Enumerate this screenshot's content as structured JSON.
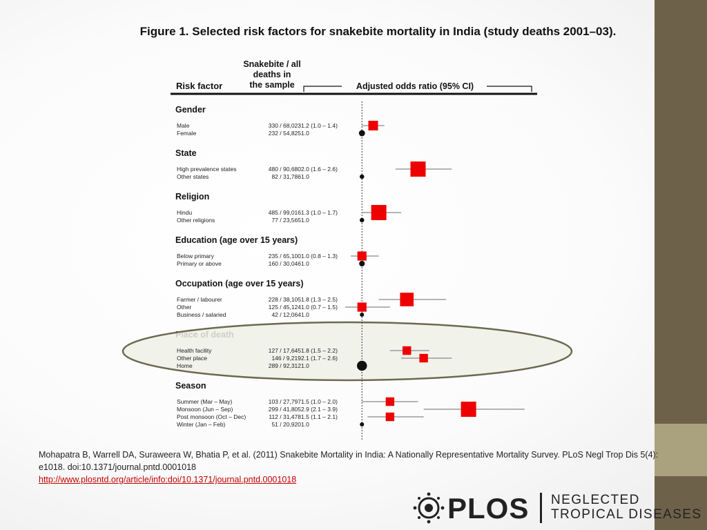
{
  "figure_title": "Figure 1. Selected risk factors for snakebite mortality in India (study deaths 2001–03).",
  "colors": {
    "marker": "#ee0000",
    "sidebar": "#6e6149",
    "sidebar_accent": "#aaa27e",
    "link": "#c00000"
  },
  "chart_data": {
    "type": "forest",
    "column_headers": {
      "risk_factor": "Risk factor",
      "deaths": [
        "Snakebite / all",
        "deaths in",
        "the sample"
      ],
      "odds_ratio": "Adjusted odds ratio  (95% CI)"
    },
    "xlabel": "Odds ratio",
    "xlim": [
      0,
      4
    ],
    "x_ticks": [
      "0",
      "1",
      "2",
      "3",
      "4"
    ],
    "reference_line": 1,
    "groups": [
      {
        "name": "Gender",
        "rows": [
          {
            "label": "Male",
            "deaths": "330 / 68,023",
            "or_text": "1.2  (1.0 – 1.4)",
            "or": 1.2,
            "ci": [
              1.0,
              1.4
            ],
            "weight": 0.5
          },
          {
            "label": "Female",
            "deaths": "232 / 54,825",
            "or_text": "1.0",
            "or": 1.0,
            "ci": null,
            "weight": 0.35
          }
        ]
      },
      {
        "name": "State",
        "rows": [
          {
            "label": "High prevalence states",
            "deaths": "480 / 90,680",
            "or_text": "2.0  (1.6 – 2.6)",
            "or": 2.0,
            "ci": [
              1.6,
              2.6
            ],
            "weight": 1.0
          },
          {
            "label": "Other states",
            "deaths": "82 / 31,786",
            "or_text": "1.0",
            "or": 1.0,
            "ci": null,
            "weight": 0.18
          }
        ]
      },
      {
        "name": "Religion",
        "rows": [
          {
            "label": "Hindu",
            "deaths": "485 / 99,016",
            "or_text": "1.3  (1.0 – 1.7)",
            "or": 1.3,
            "ci": [
              1.0,
              1.7
            ],
            "weight": 1.0
          },
          {
            "label": "Other religions",
            "deaths": "77 / 23,565",
            "or_text": "1.0",
            "or": 1.0,
            "ci": null,
            "weight": 0.18
          }
        ]
      },
      {
        "name": "Education (age over 15 years)",
        "rows": [
          {
            "label": "Below primary",
            "deaths": "235 / 65,100",
            "or_text": "1.0  (0.8 – 1.3)",
            "or": 1.0,
            "ci": [
              0.8,
              1.3
            ],
            "weight": 0.45
          },
          {
            "label": "Primary or above",
            "deaths": "160 / 30,046",
            "or_text": "1.0",
            "or": 1.0,
            "ci": null,
            "weight": 0.3
          }
        ]
      },
      {
        "name": "Occupation (age over 15 years)",
        "rows": [
          {
            "label": "Farmer / labourer",
            "deaths": "228 / 38,105",
            "or_text": "1.8  (1.3 – 2.5)",
            "or": 1.8,
            "ci": [
              1.3,
              2.5
            ],
            "weight": 0.85
          },
          {
            "label": "Other",
            "deaths": "125 / 45,124",
            "or_text": "1.0  (0.7 – 1.5)",
            "or": 1.0,
            "ci": [
              0.7,
              1.5
            ],
            "weight": 0.45
          },
          {
            "label": "Business / salaried",
            "deaths": "42 / 12,064",
            "or_text": "1.0",
            "or": 1.0,
            "ci": null,
            "weight": 0.15
          }
        ]
      },
      {
        "name": "Place of death",
        "rows": [
          {
            "label": "Health facility",
            "deaths": "127 / 17,645",
            "or_text": "1.8  (1.5 – 2.2)",
            "or": 1.8,
            "ci": [
              1.5,
              2.2
            ],
            "weight": 0.4
          },
          {
            "label": "Other place",
            "deaths": "146 /  9,219",
            "or_text": "2.1  (1.7 – 2.6)",
            "or": 2.1,
            "ci": [
              1.7,
              2.6
            ],
            "weight": 0.4
          },
          {
            "label": "Home",
            "deaths": "289 / 92,312",
            "or_text": "1.0",
            "or": 1.0,
            "ci": null,
            "weight": 0.75
          }
        ]
      },
      {
        "name": "Season",
        "rows": [
          {
            "label": "Summer  (Mar – May)",
            "deaths": "103 / 27,797",
            "or_text": "1.5  (1.0 – 2.0)",
            "or": 1.5,
            "ci": [
              1.0,
              2.0
            ],
            "weight": 0.4
          },
          {
            "label": "Monsoon  (Jun – Sep)",
            "deaths": "299 / 41,805",
            "or_text": "2.9  (2.1 – 3.9)",
            "or": 2.9,
            "ci": [
              2.1,
              3.9
            ],
            "weight": 1.0
          },
          {
            "label": "Post monsoon  (Oct – Dec)",
            "deaths": "112 / 31,478",
            "or_text": "1.5  (1.1 – 2.1)",
            "or": 1.5,
            "ci": [
              1.1,
              2.1
            ],
            "weight": 0.4
          },
          {
            "label": "Winter  (Jan – Feb)",
            "deaths": "51 / 20,920",
            "or_text": "1.0",
            "or": 1.0,
            "ci": null,
            "weight": 0.15
          }
        ]
      }
    ],
    "highlight_group": "Place of death"
  },
  "citation": {
    "text": "Mohapatra B, Warrell DA, Suraweera W, Bhatia P, et al. (2011) Snakebite Mortality in India: A Nationally Representative Mortality Survey. PLoS Negl Trop Dis 5(4): e1018. doi:10.1371/journal.pntd.0001018",
    "link": "http://www.plosntd.org/article/info:doi/10.1371/journal.pntd.0001018"
  },
  "logo": {
    "brand": "PLOS",
    "journal_line1": "NEGLECTED",
    "journal_line2": "TROPICAL DISEASES"
  }
}
